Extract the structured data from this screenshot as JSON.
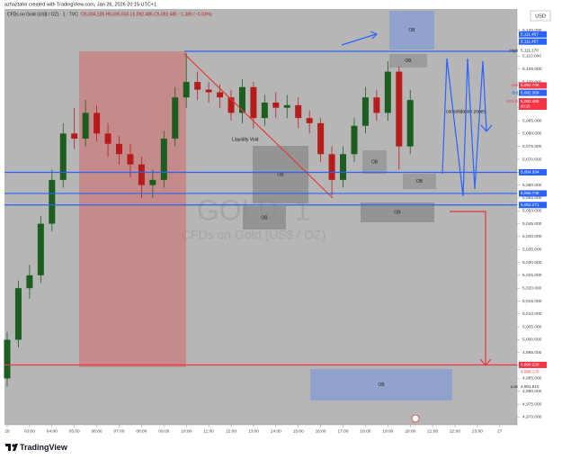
{
  "header": {
    "credit": "azhaztahir created with TradingView.com, Jan 26, 2026 20:15 UTC+1",
    "symbol": "CFDs on Gold (US$ / OZ) · 1 · TVC",
    "ohlc": "O5,094.105 H5,095.555 L5,092.485 C5,092.485 −1.385 (−0.03%)"
  },
  "chart_data": {
    "type": "candlestick",
    "currency": "USD",
    "watermark": {
      "symbol": "GOLD, 1",
      "description": "CFDs on Gold (US$ / OZ)"
    },
    "x": [
      2,
      2.5,
      3,
      3.5,
      4,
      4.5,
      5,
      5.5,
      6,
      6.5,
      7,
      7.5,
      8,
      8.5,
      9,
      9.5,
      10,
      10.5,
      11,
      11.5,
      12,
      12.5,
      13,
      13.5,
      14,
      14.5,
      15,
      15.5,
      16,
      16.5,
      17,
      17.5,
      18,
      18.5,
      19,
      19.5,
      20
    ],
    "open": [
      4985,
      5000,
      5020,
      5025,
      5045,
      5062,
      5080,
      5078,
      5088,
      5080,
      5076,
      5072,
      5068,
      5060,
      5062,
      5078,
      5094,
      5100,
      5097,
      5096,
      5094,
      5088,
      5098,
      5086,
      5092,
      5090,
      5091,
      5086,
      5084,
      5072,
      5062,
      5072,
      5083,
      5094,
      5088,
      5104,
      5075
    ],
    "high": [
      5003,
      5023,
      5029,
      5048,
      5066,
      5084,
      5090,
      5093,
      5091,
      5084,
      5079,
      5076,
      5071,
      5066,
      5081,
      5098,
      5111.17,
      5104,
      5100,
      5099,
      5097,
      5101,
      5100,
      5095,
      5096,
      5095,
      5094,
      5089,
      5086,
      5075,
      5075,
      5086,
      5098,
      5097,
      5108,
      5106,
      5097
    ],
    "low": [
      4981.81,
      4997,
      5016,
      5022,
      5042,
      5059,
      5074,
      5075,
      5077,
      5071,
      5068,
      5063,
      5055,
      5055,
      5059,
      5075,
      5090,
      5093,
      5092,
      5090,
      5085,
      5084,
      5082,
      5083,
      5086,
      5086,
      5082,
      5080,
      5069,
      5056,
      5059,
      5069,
      5080,
      5085,
      5085,
      5066,
      5072
    ],
    "close": [
      5000,
      5020,
      5025,
      5045,
      5062,
      5080,
      5078,
      5088,
      5080,
      5076,
      5072,
      5068,
      5060,
      5062,
      5078,
      5094,
      5100,
      5097,
      5096,
      5094,
      5088,
      5098,
      5086,
      5092,
      5090,
      5091,
      5086,
      5084,
      5072,
      5062,
      5072,
      5083,
      5094,
      5088,
      5104,
      5075,
      5093
    ],
    "up_color": "#1b5e20",
    "down_color": "#b71c1c",
    "xlim": [
      1.88,
      24.77
    ],
    "xticks": [
      {
        "value": 2,
        "label": "26"
      },
      {
        "value": 3,
        "label": "03:00"
      },
      {
        "value": 4,
        "label": "04:00"
      },
      {
        "value": 5,
        "label": "05:00"
      },
      {
        "value": 6,
        "label": "06:00"
      },
      {
        "value": 7,
        "label": "07:00"
      },
      {
        "value": 8,
        "label": "08:00"
      },
      {
        "value": 9,
        "label": "09:00"
      },
      {
        "value": 10,
        "label": "10:00"
      },
      {
        "value": 11,
        "label": "11:00"
      },
      {
        "value": 12,
        "label": "12:00"
      },
      {
        "value": 13,
        "label": "13:00"
      },
      {
        "value": 14,
        "label": "14:00"
      },
      {
        "value": 15,
        "label": "15:00"
      },
      {
        "value": 16,
        "label": "16:00"
      },
      {
        "value": 17,
        "label": "17:00"
      },
      {
        "value": 18,
        "label": "18:00"
      },
      {
        "value": 19,
        "label": "19:00"
      },
      {
        "value": 20,
        "label": "20:00"
      },
      {
        "value": 21,
        "label": "21:00"
      },
      {
        "value": 22,
        "label": "22:00"
      },
      {
        "value": 23,
        "label": "23:00"
      },
      {
        "value": 24,
        "label": "27"
      }
    ],
    "ylim": [
      4967,
      5128.3
    ],
    "yticks": [
      {
        "value": 4970,
        "label": "4,970.000"
      },
      {
        "value": 4975,
        "label": "4,975.000"
      },
      {
        "value": 4980,
        "label": "4,980.000"
      },
      {
        "value": 4985,
        "label": "4,985.000"
      },
      {
        "value": 4990,
        "label": "4,990.000"
      },
      {
        "value": 4995,
        "label": "4,995.000"
      },
      {
        "value": 5000,
        "label": "5,000.000"
      },
      {
        "value": 5005,
        "label": "5,005.000"
      },
      {
        "value": 5010,
        "label": "5,010.000"
      },
      {
        "value": 5015,
        "label": "5,015.000"
      },
      {
        "value": 5020,
        "label": "5,020.000"
      },
      {
        "value": 5025,
        "label": "5,025.000"
      },
      {
        "value": 5030,
        "label": "5,030.000"
      },
      {
        "value": 5035,
        "label": "5,035.000"
      },
      {
        "value": 5040,
        "label": "5,040.000"
      },
      {
        "value": 5045,
        "label": "5,045.000"
      },
      {
        "value": 5050,
        "label": "5,050.000"
      },
      {
        "value": 5055,
        "label": "5,055.000"
      },
      {
        "value": 5060,
        "label": "5,060.000"
      },
      {
        "value": 5065,
        "label": "5,065.000"
      },
      {
        "value": 5070,
        "label": "5,070.000"
      },
      {
        "value": 5075,
        "label": "5,075.000"
      },
      {
        "value": 5080,
        "label": "5,080.000"
      },
      {
        "value": 5085,
        "label": "5,085.000"
      },
      {
        "value": 5090,
        "label": "5,090.000"
      },
      {
        "value": 5095,
        "label": "5,095.000"
      },
      {
        "value": 5100,
        "label": "5,100.000"
      },
      {
        "value": 5105,
        "label": "5,105.000"
      },
      {
        "value": 5110,
        "label": "5,110.000"
      },
      {
        "value": 5115,
        "label": "5,115.000"
      },
      {
        "value": 5120,
        "label": "5,120.000"
      }
    ],
    "hlines": [
      {
        "value": 5064.934,
        "color": "#2962ff"
      },
      {
        "value": 5056.748,
        "color": "#2962ff"
      },
      {
        "value": 5052.271,
        "color": "#2962ff"
      },
      {
        "value": 4990.229,
        "color": "#f23645"
      }
    ],
    "price_labels": [
      {
        "value": 5111.17,
        "label": "5,111.170",
        "tag": "High",
        "color": "#ffffff",
        "text_color": "#333333"
      },
      {
        "value": 5111.457,
        "label": "5,111.457",
        "color": "#2962ff",
        "text_color": "#ffffff"
      },
      {
        "value": 5111.457,
        "label": "5,111.457",
        "color": "#2962ff",
        "text_color": "#ffffff"
      },
      {
        "value": 5092.709,
        "label": "5,092.709",
        "tag": "Ask",
        "color": "#f23645",
        "text_color": "#ffffff"
      },
      {
        "value": 5092.309,
        "label": "5,092.309",
        "tag": "Bid",
        "color": "#2962ff",
        "text_color": "#ffffff"
      },
      {
        "value": 5092.485,
        "label": "5,092.485",
        "tag": "GOLD",
        "sub": "00:15",
        "color": "#f23645",
        "text_color": "#ffffff"
      },
      {
        "value": 5064.934,
        "label": "5,064.934",
        "color": "#2962ff",
        "text_color": "#ffffff"
      },
      {
        "value": 5056.748,
        "label": "5,056.748",
        "color": "#2962ff",
        "text_color": "#ffffff"
      },
      {
        "value": 5052.271,
        "label": "5,052.271",
        "color": "#2962ff",
        "text_color": "#ffffff"
      },
      {
        "value": 4990.229,
        "label": "4,990.229",
        "color": "#f23645",
        "text_color": "#ffffff"
      },
      {
        "value": 4988.17,
        "label": "4,988.170",
        "color": "#ffffff",
        "text_color": "#f23645"
      },
      {
        "value": 4981.81,
        "label": "4,981.810",
        "tag": "Low",
        "color": "#ffffff",
        "text_color": "#333333"
      }
    ],
    "annotations": [
      "OB",
      "OB",
      "OB",
      "OB",
      "OB",
      "OB",
      "OB",
      "OB",
      "Liquidity Void",
      "consolidation zones"
    ]
  },
  "footer": {
    "brand": "TradingView"
  }
}
